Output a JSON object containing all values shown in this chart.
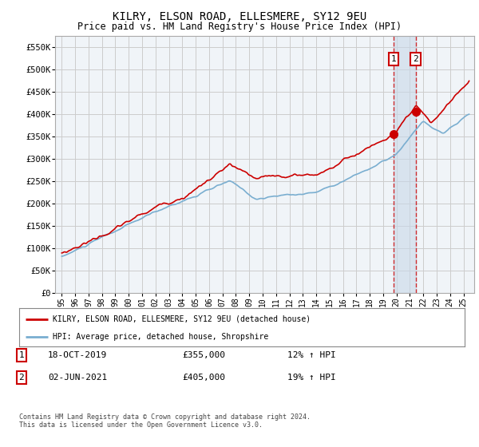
{
  "title": "KILRY, ELSON ROAD, ELLESMERE, SY12 9EU",
  "subtitle": "Price paid vs. HM Land Registry's House Price Index (HPI)",
  "legend_line1": "KILRY, ELSON ROAD, ELLESMERE, SY12 9EU (detached house)",
  "legend_line2": "HPI: Average price, detached house, Shropshire",
  "annotation1_date": "18-OCT-2019",
  "annotation1_price": "£355,000",
  "annotation1_hpi": "12% ↑ HPI",
  "annotation2_date": "02-JUN-2021",
  "annotation2_price": "£405,000",
  "annotation2_hpi": "19% ↑ HPI",
  "footer": "Contains HM Land Registry data © Crown copyright and database right 2024.\nThis data is licensed under the Open Government Licence v3.0.",
  "red_color": "#cc0000",
  "blue_color": "#7aaed0",
  "background_color": "#ffffff",
  "grid_color": "#cccccc",
  "plot_bg_color": "#f0f4f8",
  "ylim": [
    0,
    575000
  ],
  "yticks": [
    0,
    50000,
    100000,
    150000,
    200000,
    250000,
    300000,
    350000,
    400000,
    450000,
    500000,
    550000
  ],
  "ytick_labels": [
    "£0",
    "£50K",
    "£100K",
    "£150K",
    "£200K",
    "£250K",
    "£300K",
    "£350K",
    "£400K",
    "£450K",
    "£500K",
    "£550K"
  ],
  "sale1_x": 2019.79,
  "sale1_y": 355000,
  "sale2_x": 2021.42,
  "sale2_y": 405000,
  "xlim_left": 1994.5,
  "xlim_right": 2025.8
}
